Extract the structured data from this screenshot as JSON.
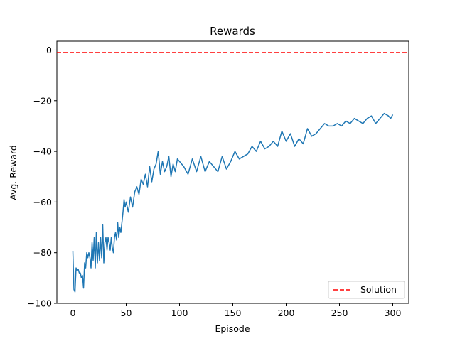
{
  "chart_data": {
    "type": "line",
    "title": "Rewards",
    "xlabel": "Episode",
    "ylabel": "Avg. Reward",
    "xlim": [
      -15,
      315
    ],
    "ylim": [
      -100,
      3.5
    ],
    "xticks": [
      0,
      50,
      100,
      150,
      200,
      250,
      300
    ],
    "yticks": [
      -100,
      -80,
      -60,
      -40,
      -20,
      0
    ],
    "ytick_labels": [
      "−100",
      "−80",
      "−60",
      "−40",
      "−20",
      "0"
    ],
    "grid": false,
    "legend_position": "lower-right",
    "series": [
      {
        "color": "#1f77b4",
        "x": [
          0,
          1,
          2,
          3,
          4,
          5,
          6,
          7,
          8,
          9,
          10,
          11,
          12,
          13,
          14,
          15,
          16,
          17,
          18,
          19,
          20,
          21,
          22,
          23,
          24,
          25,
          26,
          27,
          28,
          29,
          30,
          31,
          32,
          33,
          34,
          35,
          36,
          37,
          38,
          39,
          40,
          41,
          42,
          43,
          44,
          45,
          46,
          47,
          48,
          49,
          50,
          52,
          54,
          56,
          58,
          60,
          62,
          64,
          66,
          68,
          70,
          72,
          74,
          76,
          78,
          80,
          82,
          84,
          86,
          88,
          90,
          92,
          94,
          96,
          98,
          100,
          104,
          108,
          112,
          116,
          120,
          124,
          128,
          132,
          136,
          140,
          144,
          148,
          152,
          156,
          160,
          164,
          168,
          172,
          176,
          180,
          184,
          188,
          192,
          196,
          200,
          204,
          208,
          212,
          216,
          220,
          224,
          228,
          232,
          236,
          240,
          244,
          248,
          252,
          256,
          260,
          264,
          268,
          272,
          276,
          280,
          284,
          288,
          292,
          296,
          298,
          300
        ],
        "y": [
          -79.5,
          -94.5,
          -95.5,
          -86,
          -87,
          -86.5,
          -88,
          -88,
          -90,
          -89,
          -94,
          -84,
          -86,
          -80,
          -82,
          -80,
          -82,
          -86,
          -76,
          -83,
          -74,
          -86,
          -72,
          -84,
          -76,
          -83,
          -74,
          -82,
          -69,
          -84,
          -76,
          -74,
          -79,
          -74,
          -76,
          -79,
          -74,
          -78,
          -80,
          -74,
          -72,
          -75,
          -68,
          -74,
          -70,
          -72,
          -68,
          -64,
          -59,
          -62,
          -60,
          -64,
          -58,
          -62,
          -56,
          -54,
          -57,
          -51,
          -53,
          -49,
          -54,
          -46,
          -52,
          -47,
          -45,
          -40,
          -49,
          -44,
          -48,
          -46,
          -42,
          -50,
          -45,
          -48,
          -43,
          -44,
          -46,
          -49,
          -43,
          -48,
          -42,
          -48,
          -44,
          -46,
          -48,
          -42,
          -47,
          -44,
          -40,
          -43,
          -42,
          -41,
          -38,
          -40,
          -36,
          -39,
          -38,
          -36,
          -38,
          -32,
          -36,
          -33,
          -38,
          -35,
          -37,
          -31,
          -34,
          -33,
          -31,
          -29,
          -30,
          -30,
          -29,
          -30,
          -28,
          -29,
          -27,
          -28,
          -29,
          -27,
          -26,
          -29,
          -27,
          -25,
          -26,
          -27,
          -25.5
        ],
        "lines": [
          {
            "x": [
              0,
              1,
              2,
              3,
              4,
              5,
              6,
              7,
              8,
              9,
              10,
              11,
              12,
              13,
              14,
              15,
              16,
              17,
              18,
              19,
              20,
              21,
              22,
              23,
              24,
              25,
              26,
              27,
              28,
              29,
              30,
              31,
              32,
              33,
              34,
              35,
              36,
              37,
              38,
              39,
              40,
              41,
              42,
              43,
              44,
              45,
              46,
              47,
              48,
              49,
              50,
              51,
              52,
              53,
              54,
              55,
              56,
              57,
              58,
              59,
              60,
              61,
              62,
              63,
              64,
              65,
              66,
              67,
              68,
              69,
              70,
              71,
              72,
              73,
              74,
              75,
              76,
              77,
              78,
              79,
              80,
              81,
              82,
              83,
              84,
              85,
              86,
              87,
              88,
              89,
              90,
              91,
              92,
              93,
              94,
              95,
              96,
              97,
              98,
              99,
              100,
              101,
              102,
              103,
              104,
              105,
              106,
              107,
              108,
              109,
              110,
              111,
              112,
              113,
              114,
              115,
              116,
              117,
              118,
              119,
              120,
              121,
              122,
              123,
              124,
              125,
              126,
              127,
              128,
              129,
              130,
              131,
              132,
              133,
              134,
              135,
              136,
              137,
              138,
              139,
              140,
              141,
              142,
              143,
              144,
              145,
              146,
              147,
              148,
              149,
              150,
              151,
              152,
              153,
              154,
              155,
              156,
              157,
              158,
              159,
              160,
              161,
              162,
              163,
              164,
              165,
              166,
              167,
              168,
              169,
              170,
              171,
              172,
              173,
              174,
              175,
              176,
              177,
              178,
              179,
              180,
              181,
              182,
              183,
              184,
              185,
              186,
              187,
              188,
              189,
              190,
              191,
              192,
              193,
              194,
              195,
              196,
              197,
              198,
              199,
              200,
              201,
              202,
              203,
              204,
              205,
              206,
              207,
              208,
              209,
              210,
              211,
              212,
              213,
              214,
              215,
              216,
              217,
              218,
              219,
              220,
              221,
              222,
              223,
              224,
              225,
              226,
              227,
              228,
              229,
              230,
              231,
              232,
              233,
              234,
              235,
              236,
              237,
              238,
              239,
              240,
              241,
              242,
              243,
              244,
              245,
              246,
              247,
              248,
              249,
              250,
              251,
              252,
              253,
              254,
              255,
              256,
              257,
              258,
              259,
              260,
              261,
              262,
              263,
              264,
              265,
              266,
              267,
              268,
              269,
              270,
              271,
              272,
              273,
              274,
              275,
              276,
              277,
              278,
              279,
              280,
              281,
              282,
              283,
              284,
              285,
              286,
              287,
              288,
              289,
              290,
              291,
              292,
              293,
              294,
              295,
              296,
              297,
              298,
              299,
              300
            ]
          }
        ]
      },
      {
        "name": "Solution",
        "color": "#ff0000",
        "style": "dashed",
        "x": [
          -15,
          315
        ],
        "y": [
          -1,
          -1
        ]
      }
    ]
  }
}
